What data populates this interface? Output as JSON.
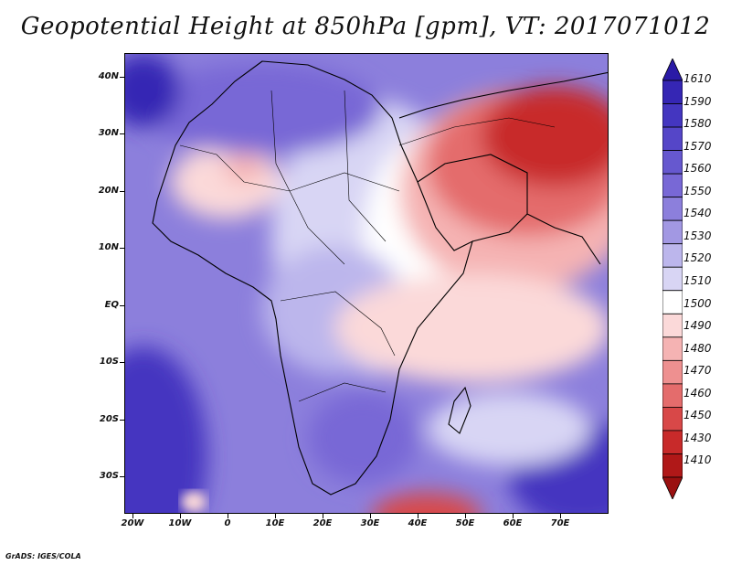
{
  "title": "Geopotential Height at 850hPa [gpm], VT: 2017071012",
  "credit": "GrADS: IGES/COLA",
  "axes": {
    "lat_ticks": [
      "40N",
      "30N",
      "20N",
      "10N",
      "EQ",
      "10S",
      "20S",
      "30S"
    ],
    "lon_ticks": [
      "20W",
      "10W",
      "0",
      "10E",
      "20E",
      "30E",
      "40E",
      "50E",
      "60E",
      "70E"
    ]
  },
  "legend": {
    "labels": [
      "1610",
      "1590",
      "1580",
      "1570",
      "1560",
      "1550",
      "1540",
      "1530",
      "1520",
      "1510",
      "1500",
      "1490",
      "1480",
      "1470",
      "1460",
      "1450",
      "1430",
      "1410"
    ],
    "colors": [
      "#2a1aa6",
      "#3526b4",
      "#4436c0",
      "#5546c8",
      "#6658cf",
      "#7868d6",
      "#8c7fdc",
      "#a298e3",
      "#bcb6ec",
      "#d8d5f4",
      "#ffffff",
      "#fbd9d9",
      "#f5b3b3",
      "#ee9090",
      "#e46c6c",
      "#d84848",
      "#c82a2a",
      "#b01818",
      "#9a1010"
    ]
  }
}
